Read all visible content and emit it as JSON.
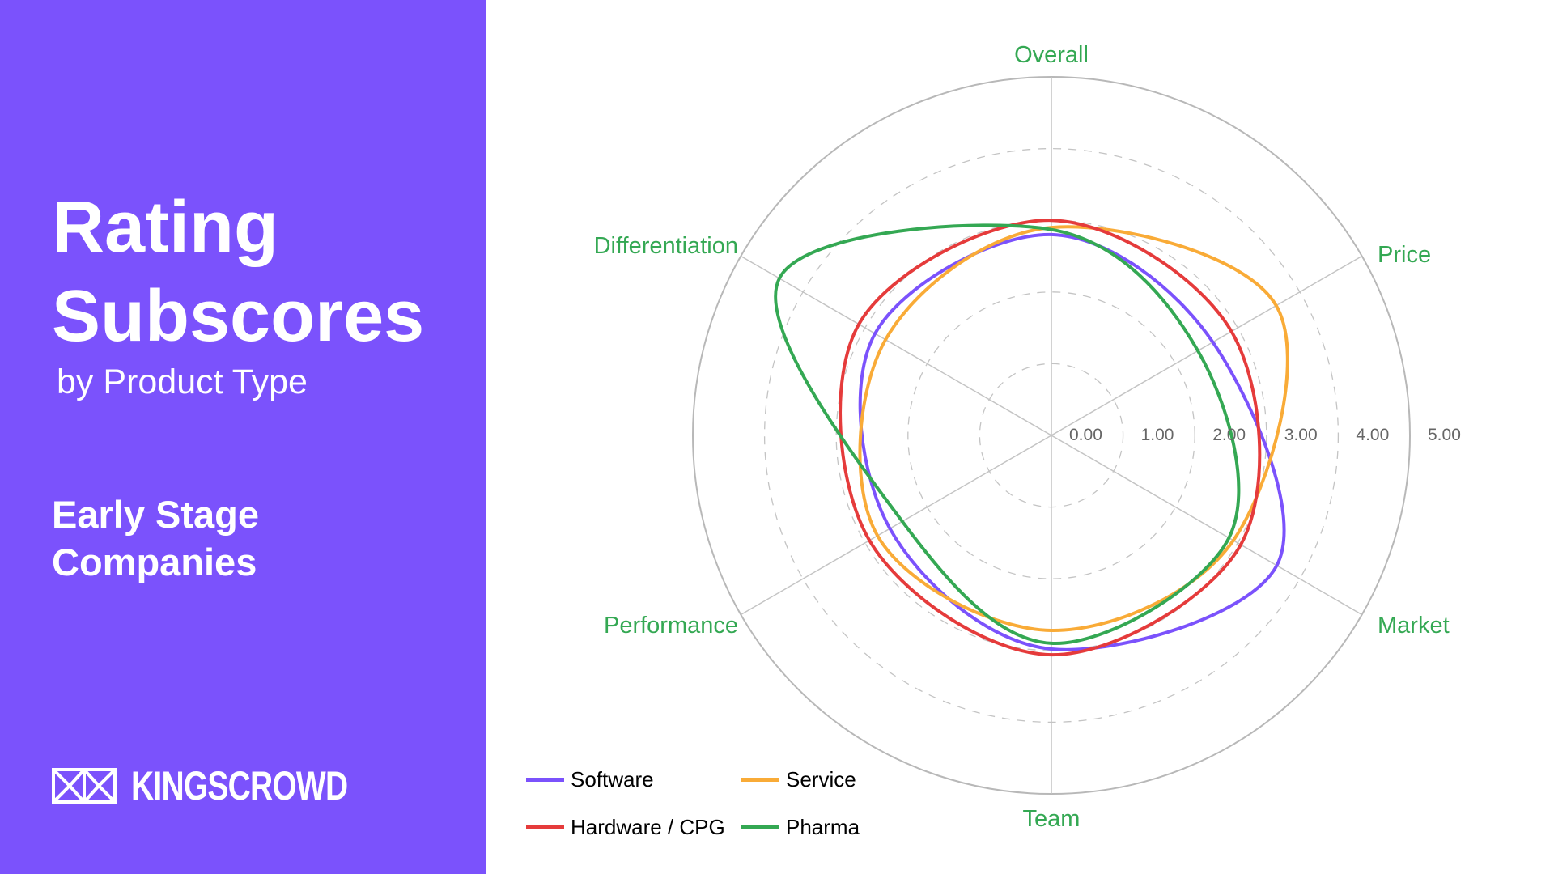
{
  "sidebar": {
    "title_line1": "Rating",
    "title_line2": "Subscores",
    "subtitle": "by Product Type",
    "segment_line1": "Early Stage",
    "segment_line2": "Companies",
    "logo_text": "KINGSCROWD",
    "logo_icon": "crown-icon",
    "background_color": "#7b52fc"
  },
  "chart_data": {
    "type": "radar",
    "title": "Rating Subscores by Product Type — Early Stage Companies",
    "axes": [
      "Overall",
      "Price",
      "Market",
      "Team",
      "Performance",
      "Differentiation"
    ],
    "tick_labels": [
      "0.00",
      "1.00",
      "2.00",
      "3.00",
      "4.00",
      "5.00"
    ],
    "range": [
      0,
      5
    ],
    "grid": true,
    "smooth": true,
    "legend_position": "bottom-left",
    "series": [
      {
        "name": "Software",
        "color": "#7b52fc",
        "values": [
          2.8,
          2.6,
          3.63,
          2.98,
          2.6,
          2.84
        ]
      },
      {
        "name": "Service",
        "color": "#f9ab37",
        "values": [
          2.9,
          3.62,
          2.93,
          2.72,
          2.8,
          2.67
        ]
      },
      {
        "name": "Hardware / CPG",
        "color": "#e53b3b",
        "values": [
          3.0,
          2.9,
          3.05,
          3.06,
          2.93,
          3.1
        ]
      },
      {
        "name": "Pharma",
        "color": "#34a853",
        "values": [
          2.87,
          2.36,
          2.86,
          2.9,
          2.4,
          4.38
        ]
      }
    ],
    "axis_label_color": "#34a853",
    "grid_color": "#bdbdbd"
  },
  "legend": {
    "items": [
      {
        "label": "Software",
        "color": "#7b52fc"
      },
      {
        "label": "Service",
        "color": "#f9ab37"
      },
      {
        "label": "Hardware / CPG",
        "color": "#e53b3b"
      },
      {
        "label": "Pharma",
        "color": "#34a853"
      }
    ]
  }
}
